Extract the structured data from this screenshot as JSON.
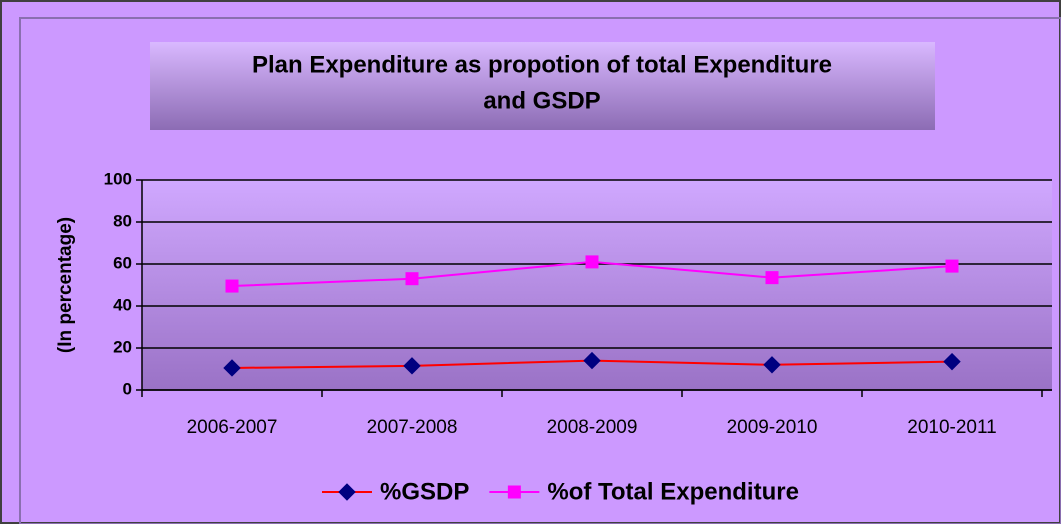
{
  "chart_data": {
    "type": "line",
    "title": [
      "Plan Expenditure as propotion of total Expenditure",
      "and GSDP"
    ],
    "y_label": "(In percentage)",
    "categories": [
      "2006-2007",
      "2007-2008",
      "2008-2009",
      "2009-2010",
      "2010-2011"
    ],
    "series": [
      {
        "name": "%GSDP",
        "color": "#ff0000",
        "marker_color": "#000080",
        "marker": "diamond",
        "values": [
          10.5,
          11.5,
          14,
          12,
          13.5
        ]
      },
      {
        "name": "%of Total Expenditure",
        "color": "#ff00ff",
        "marker_color": "#ff00ff",
        "marker": "square",
        "values": [
          49.5,
          53,
          61,
          53.5,
          59
        ]
      }
    ],
    "ylim": [
      0,
      100
    ],
    "yticks": [
      0,
      20,
      40,
      60,
      80,
      100
    ],
    "grid": true,
    "legend": "bottom"
  }
}
